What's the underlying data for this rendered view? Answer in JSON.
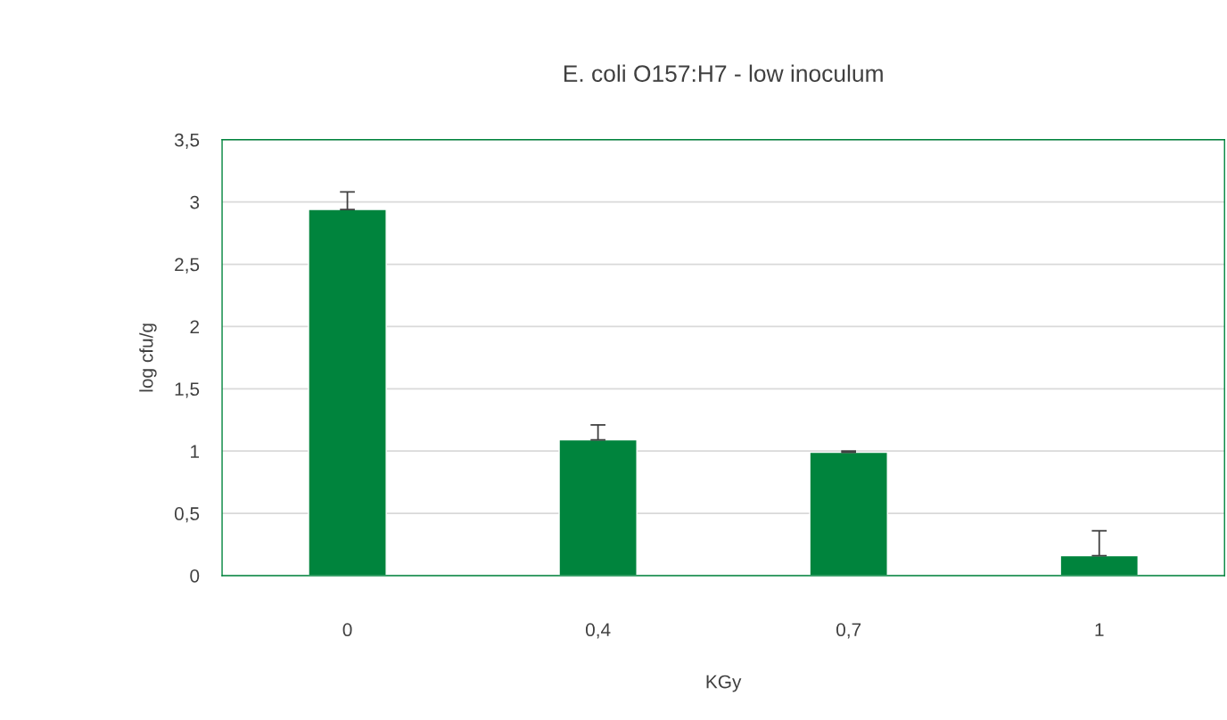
{
  "chart_data": {
    "type": "bar",
    "title": "E. coli O157:H7 - low inoculum",
    "xlabel": "KGy",
    "ylabel": "log cfu/g",
    "categories": [
      "0",
      "0,4",
      "0,7",
      "1"
    ],
    "values": [
      2.94,
      1.09,
      0.99,
      0.16
    ],
    "errors": [
      [
        2.94,
        3.08
      ],
      [
        1.09,
        1.21
      ],
      [
        0.99,
        1.0
      ],
      [
        0.16,
        0.36
      ]
    ],
    "color": "#00843d",
    "ylim": [
      0,
      3.5
    ],
    "yticks": [
      0,
      {
        "value": 0.5,
        "label": "0,5"
      },
      1,
      {
        "value": 1.5,
        "label": "1,5"
      },
      2,
      {
        "value": 2.5,
        "label": "2,5"
      },
      3,
      {
        "value": 3.5,
        "label": "3,5"
      }
    ],
    "grid": "y",
    "legend": false
  }
}
